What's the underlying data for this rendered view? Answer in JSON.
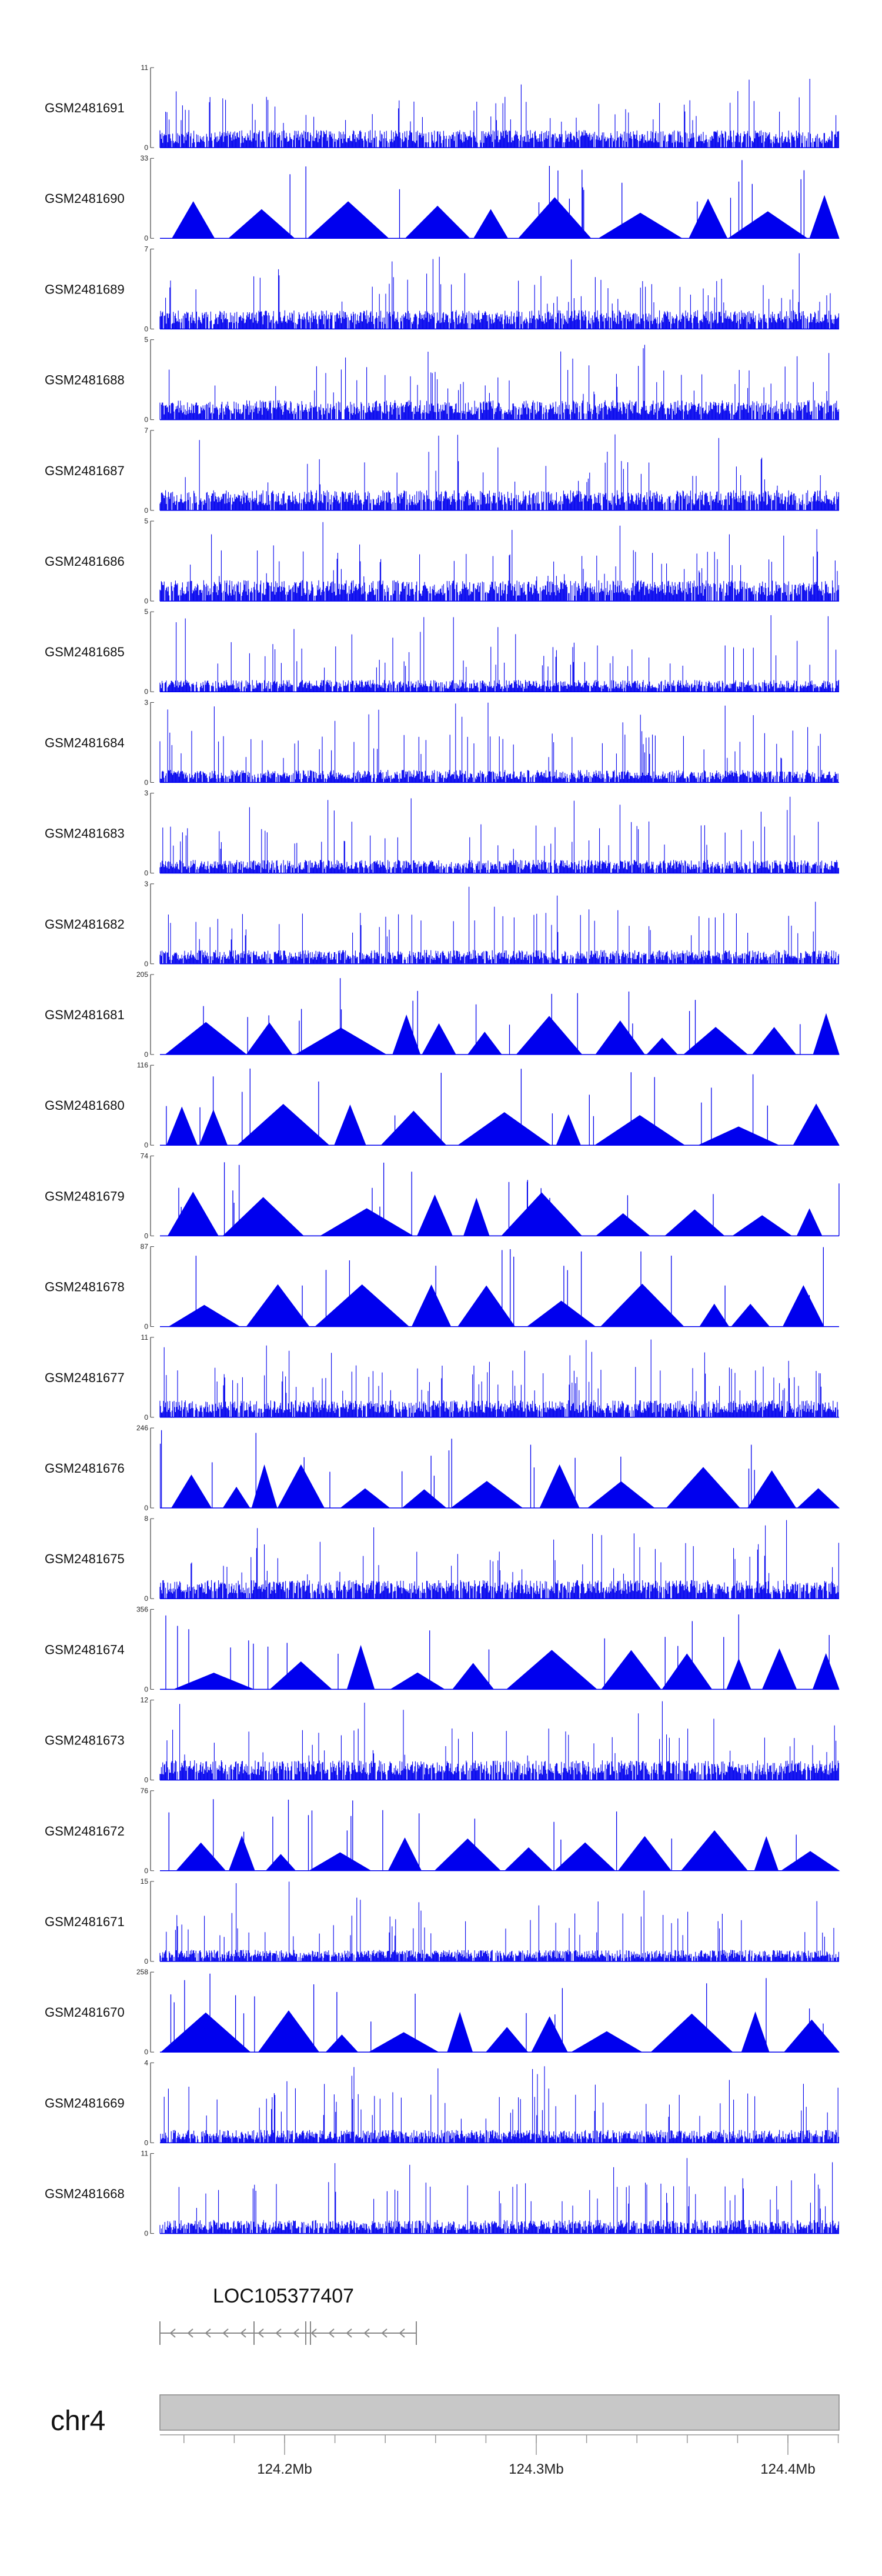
{
  "chart_data": {
    "type": "area",
    "chromosome": "chr4",
    "gene": {
      "name": "LOC105377407",
      "strand": "-"
    },
    "x_axis": {
      "ticks": [
        {
          "pos": 124.2,
          "label": "124.2Mb"
        },
        {
          "pos": 124.3,
          "label": "124.3Mb"
        },
        {
          "pos": 124.4,
          "label": "124.4Mb"
        }
      ]
    },
    "series": [
      {
        "name": "GSM2481691",
        "ymax": 11,
        "style": "dense"
      },
      {
        "name": "GSM2481690",
        "ymax": 33,
        "style": "peaks"
      },
      {
        "name": "GSM2481689",
        "ymax": 7,
        "style": "dense"
      },
      {
        "name": "GSM2481688",
        "ymax": 5,
        "style": "dense"
      },
      {
        "name": "GSM2481687",
        "ymax": 7,
        "style": "dense"
      },
      {
        "name": "GSM2481686",
        "ymax": 5,
        "style": "dense"
      },
      {
        "name": "GSM2481685",
        "ymax": 5,
        "style": "dense"
      },
      {
        "name": "GSM2481684",
        "ymax": 3,
        "style": "dense"
      },
      {
        "name": "GSM2481683",
        "ymax": 3,
        "style": "dense"
      },
      {
        "name": "GSM2481682",
        "ymax": 3,
        "style": "dense"
      },
      {
        "name": "GSM2481681",
        "ymax": 205,
        "style": "peaks"
      },
      {
        "name": "GSM2481680",
        "ymax": 116,
        "style": "peaks"
      },
      {
        "name": "GSM2481679",
        "ymax": 74,
        "style": "peaks"
      },
      {
        "name": "GSM2481678",
        "ymax": 87,
        "style": "peaks"
      },
      {
        "name": "GSM2481677",
        "ymax": 11,
        "style": "dense"
      },
      {
        "name": "GSM2481676",
        "ymax": 246,
        "style": "peaks"
      },
      {
        "name": "GSM2481675",
        "ymax": 8,
        "style": "dense"
      },
      {
        "name": "GSM2481674",
        "ymax": 356,
        "style": "peaks"
      },
      {
        "name": "GSM2481673",
        "ymax": 12,
        "style": "dense"
      },
      {
        "name": "GSM2481672",
        "ymax": 76,
        "style": "peaks"
      },
      {
        "name": "GSM2481671",
        "ymax": 15,
        "style": "dense"
      },
      {
        "name": "GSM2481670",
        "ymax": 258,
        "style": "peaks"
      },
      {
        "name": "GSM2481669",
        "ymax": 4,
        "style": "dense"
      },
      {
        "name": "GSM2481668",
        "ymax": 11,
        "style": "dense"
      }
    ],
    "color": "#0000ee"
  }
}
